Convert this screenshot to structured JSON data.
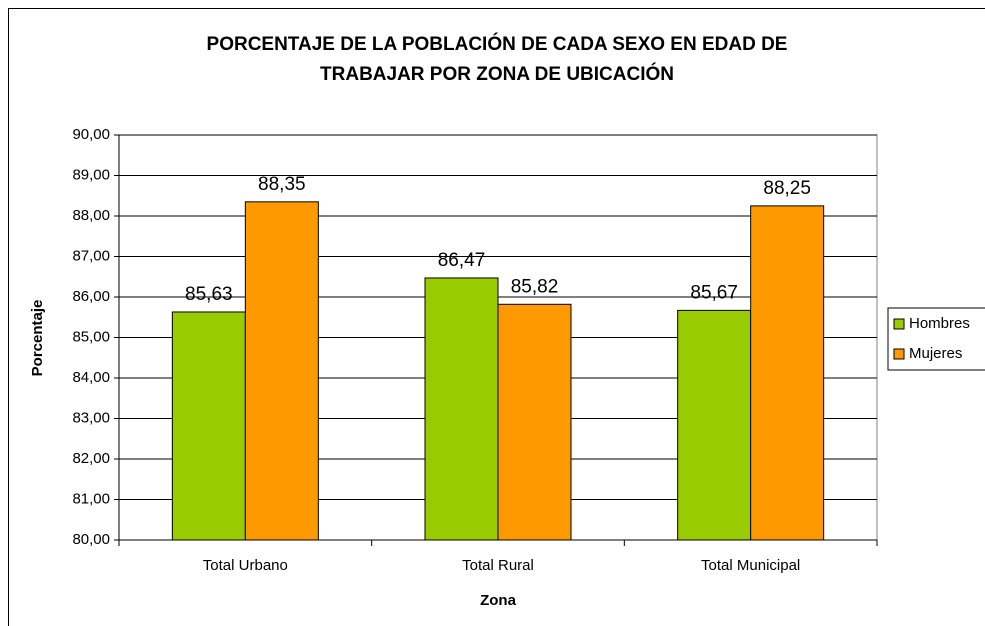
{
  "chart_data": {
    "type": "bar",
    "title": [
      "PORCENTAJE DE LA POBLACIÓN DE CADA SEXO EN EDAD DE",
      "TRABAJAR POR ZONA DE UBICACIÓN"
    ],
    "x_label": "Zona",
    "y_label": "Porcentaje",
    "categories": [
      "Total Urbano",
      "Total Rural",
      "Total Municipal"
    ],
    "series": [
      {
        "name": "Hombres",
        "color": "#99cc00",
        "values": [
          85.63,
          86.47,
          85.67
        ],
        "value_labels": [
          "85,63",
          "86,47",
          "85,67"
        ]
      },
      {
        "name": "Mujeres",
        "color": "#ff9900",
        "values": [
          88.35,
          85.82,
          88.25
        ],
        "value_labels": [
          "88,35",
          "85,82",
          "88,25"
        ]
      }
    ],
    "ylim": [
      80,
      90
    ],
    "yticks": [
      {
        "value": 80,
        "label": "80,00"
      },
      {
        "value": 81,
        "label": "81,00"
      },
      {
        "value": 82,
        "label": "82,00"
      },
      {
        "value": 83,
        "label": "83,00"
      },
      {
        "value": 84,
        "label": "84,00"
      },
      {
        "value": 85,
        "label": "85,00"
      },
      {
        "value": 86,
        "label": "86,00"
      },
      {
        "value": 87,
        "label": "87,00"
      },
      {
        "value": 88,
        "label": "88,00"
      },
      {
        "value": 89,
        "label": "89,00"
      },
      {
        "value": 90,
        "label": "90,00"
      }
    ],
    "grid": true,
    "legend": "right"
  }
}
